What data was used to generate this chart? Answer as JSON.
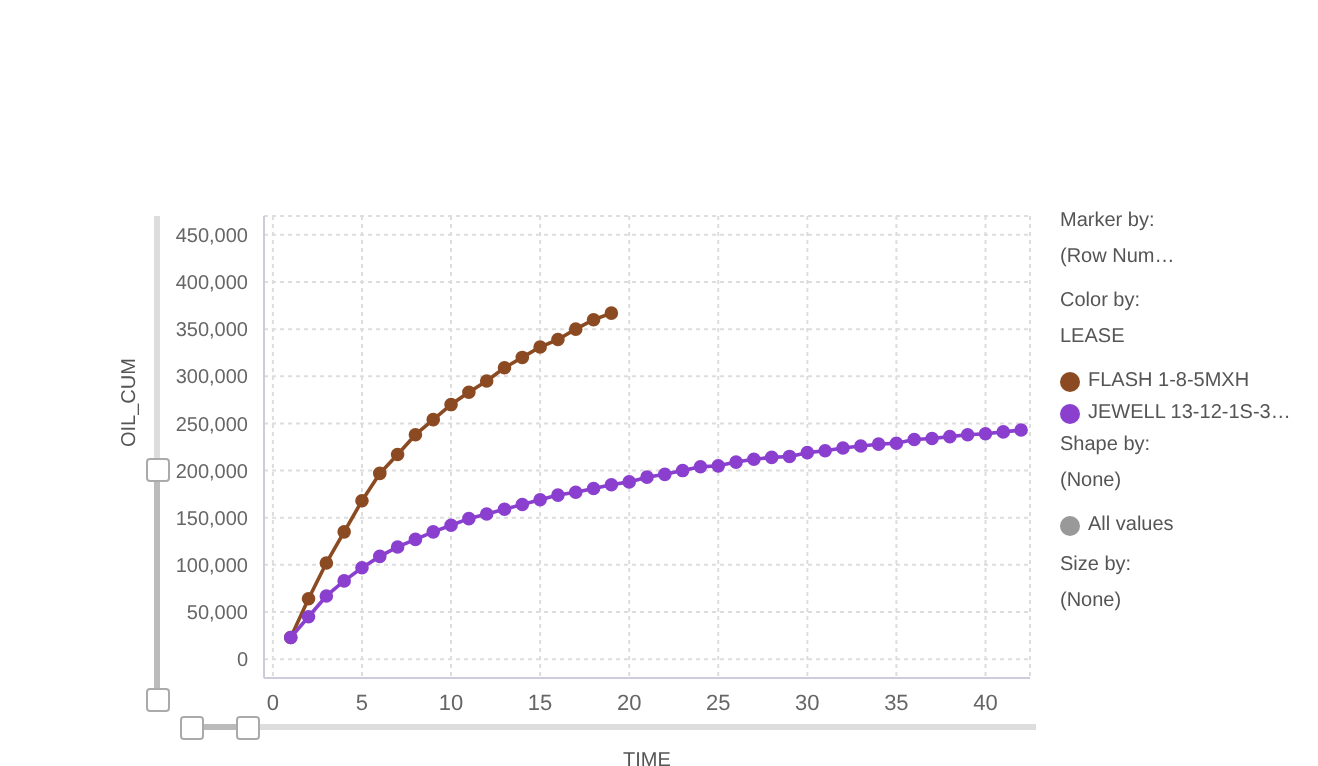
{
  "chart_data": {
    "type": "line",
    "xlabel": "TIME",
    "ylabel": "OIL_CUM",
    "xlim": [
      -0.5,
      42.5
    ],
    "xticks": [
      0,
      5,
      10,
      15,
      20,
      25,
      30,
      35,
      40
    ],
    "ylim": [
      -20000,
      470000
    ],
    "yticks": [
      0,
      {
        "value": 50000,
        "label": "50,000"
      },
      {
        "value": 100000,
        "label": "100,000"
      },
      {
        "value": 150000,
        "label": "150,000"
      },
      {
        "value": 200000,
        "label": "200,000"
      },
      {
        "value": 250000,
        "label": "250,000"
      },
      {
        "value": 300000,
        "label": "300,000"
      },
      {
        "value": 350000,
        "label": "350,000"
      },
      {
        "value": 400000,
        "label": "400,000"
      },
      {
        "value": 450000,
        "label": "450,000"
      }
    ],
    "grid": true,
    "legend": "right",
    "marker": "circle",
    "line_style": "solid",
    "legend_title": "Color by:",
    "annotations": [
      "Marker by:",
      "(Row Num…",
      "LEASE",
      "Shape by:",
      "(None)",
      "All values",
      "Size by:",
      "(None)"
    ],
    "series": [
      {
        "name": "FLASH 1-8-5MXH",
        "color": "#8b4a22",
        "x": [
          1,
          2,
          3,
          4,
          5,
          6,
          7,
          8,
          9,
          10,
          11,
          12,
          13,
          14,
          15,
          16,
          17,
          18,
          19
        ],
        "values": [
          23000,
          64000,
          102000,
          135000,
          168000,
          197000,
          217000,
          238000,
          254000,
          270000,
          283000,
          295000,
          309000,
          320000,
          331000,
          339000,
          350000,
          360000,
          367000
        ]
      },
      {
        "name": "JEWELL 13-12-1S-3…",
        "color": "#8a3fcf",
        "x": [
          1,
          2,
          3,
          4,
          5,
          6,
          7,
          8,
          9,
          10,
          11,
          12,
          13,
          14,
          15,
          16,
          17,
          18,
          19,
          20,
          21,
          22,
          23,
          24,
          25,
          26,
          27,
          28,
          29,
          30,
          31,
          32,
          33,
          34,
          35,
          36,
          37,
          38,
          39,
          40,
          41,
          42
        ],
        "values": [
          23000,
          45000,
          67000,
          83000,
          97000,
          109000,
          119000,
          127000,
          135000,
          142000,
          149000,
          154000,
          159000,
          164000,
          169000,
          174000,
          177000,
          181000,
          185000,
          188000,
          193000,
          196000,
          200000,
          204000,
          205000,
          209000,
          212000,
          214000,
          215000,
          219000,
          221000,
          224000,
          226000,
          228000,
          229000,
          233000,
          234000,
          236000,
          238000,
          239000,
          241000,
          243000
        ]
      }
    ]
  }
}
